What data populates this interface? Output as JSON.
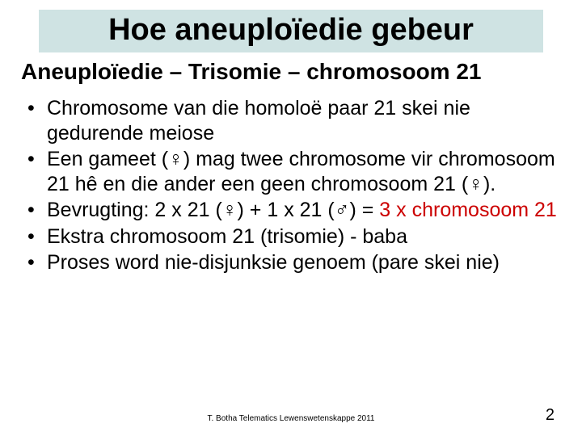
{
  "colors": {
    "title_bg": "#cfe3e3",
    "text": "#000000",
    "accent_red": "#cc0000",
    "background": "#ffffff"
  },
  "typography": {
    "title_fontsize": 38,
    "subtitle_fontsize": 28,
    "bullet_fontsize": 25,
    "footer_fontsize": 10,
    "pagenum_fontsize": 20,
    "family": "Arial"
  },
  "title": "Hoe aneuploïedie gebeur",
  "subtitle": "Aneuploïedie – Trisomie – chromosoom 21",
  "bullets": [
    {
      "parts": [
        {
          "t": "Chromosome van die homoloë paar 21 skei nie gedurende meiose"
        }
      ]
    },
    {
      "parts": [
        {
          "t": "Een gameet (♀) mag twee chromosome vir chromosoom 21 hê en die ander een geen chromosoom 21 (♀)."
        }
      ]
    },
    {
      "parts": [
        {
          "t": "Bevrugting: 2 x 21 (♀) + 1 x 21 (♂) = "
        },
        {
          "t": "3 x chromosoom 21",
          "red": true
        }
      ]
    },
    {
      "parts": [
        {
          "t": "Ekstra chromosoom 21 (trisomie) - baba"
        }
      ]
    },
    {
      "parts": [
        {
          "t": "Proses word nie-disjunksie genoem (pare skei nie)"
        }
      ]
    }
  ],
  "footer": "T. Botha   Telematics Lewenswetenskappe 2011",
  "page_number": "2"
}
